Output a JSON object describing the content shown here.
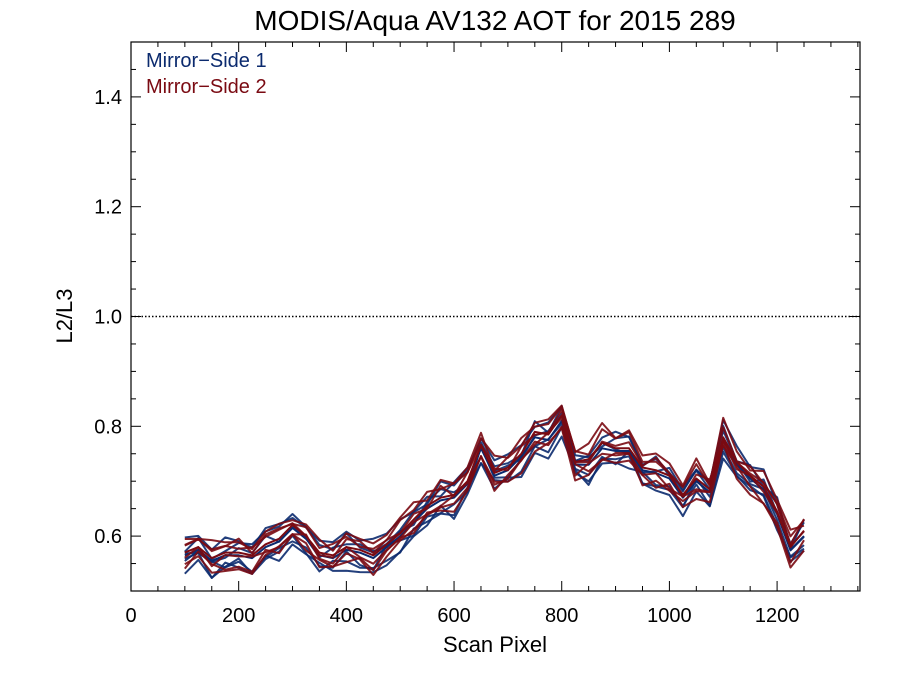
{
  "chart_data": {
    "type": "line",
    "title": "MODIS/Aqua AV132 AOT for 2015 289",
    "xlabel": "Scan Pixel",
    "ylabel": "L2/L3",
    "xlim": [
      0,
      1354
    ],
    "ylim": [
      0.5,
      1.5
    ],
    "x_ticks": [
      0,
      200,
      400,
      600,
      800,
      1000,
      1200
    ],
    "x_tick_labels": [
      "0",
      "200",
      "400",
      "600",
      "800",
      "1000",
      "1200"
    ],
    "x_minor_step": 50,
    "y_ticks": [
      0.6,
      0.8,
      1.0,
      1.2,
      1.4
    ],
    "y_tick_labels": [
      "0.6",
      "0.8",
      "1.0",
      "1.2",
      "1.4"
    ],
    "y_minor_step": 0.05,
    "reference_line": {
      "y": 1.0,
      "style": "dotted"
    },
    "grid": false,
    "legend_position": "top-left",
    "x": [
      100,
      125,
      150,
      175,
      200,
      225,
      250,
      275,
      300,
      325,
      350,
      375,
      400,
      425,
      450,
      475,
      500,
      525,
      550,
      575,
      600,
      625,
      650,
      675,
      700,
      725,
      750,
      775,
      800,
      825,
      850,
      875,
      900,
      925,
      950,
      975,
      1000,
      1025,
      1050,
      1075,
      1100,
      1125,
      1150,
      1175,
      1200,
      1225,
      1250
    ],
    "series": [
      {
        "name": "Mirror−Side 1",
        "color": "#0b2a6e",
        "values": [
          0.565,
          0.575,
          0.555,
          0.565,
          0.565,
          0.56,
          0.58,
          0.59,
          0.615,
          0.595,
          0.565,
          0.56,
          0.575,
          0.57,
          0.56,
          0.58,
          0.6,
          0.625,
          0.65,
          0.665,
          0.67,
          0.695,
          0.76,
          0.71,
          0.72,
          0.745,
          0.78,
          0.775,
          0.81,
          0.73,
          0.73,
          0.76,
          0.755,
          0.755,
          0.72,
          0.715,
          0.705,
          0.67,
          0.7,
          0.68,
          0.775,
          0.73,
          0.705,
          0.685,
          0.64,
          0.575,
          0.6
        ]
      },
      {
        "name": "Mirror−Side 2",
        "color": "#7a0a12",
        "values": [
          0.57,
          0.58,
          0.56,
          0.57,
          0.57,
          0.565,
          0.585,
          0.595,
          0.62,
          0.6,
          0.57,
          0.565,
          0.58,
          0.575,
          0.565,
          0.585,
          0.605,
          0.63,
          0.655,
          0.67,
          0.675,
          0.7,
          0.765,
          0.715,
          0.725,
          0.75,
          0.79,
          0.785,
          0.82,
          0.735,
          0.74,
          0.77,
          0.76,
          0.76,
          0.725,
          0.72,
          0.71,
          0.675,
          0.705,
          0.685,
          0.78,
          0.735,
          0.71,
          0.69,
          0.645,
          0.58,
          0.61
        ]
      }
    ]
  }
}
